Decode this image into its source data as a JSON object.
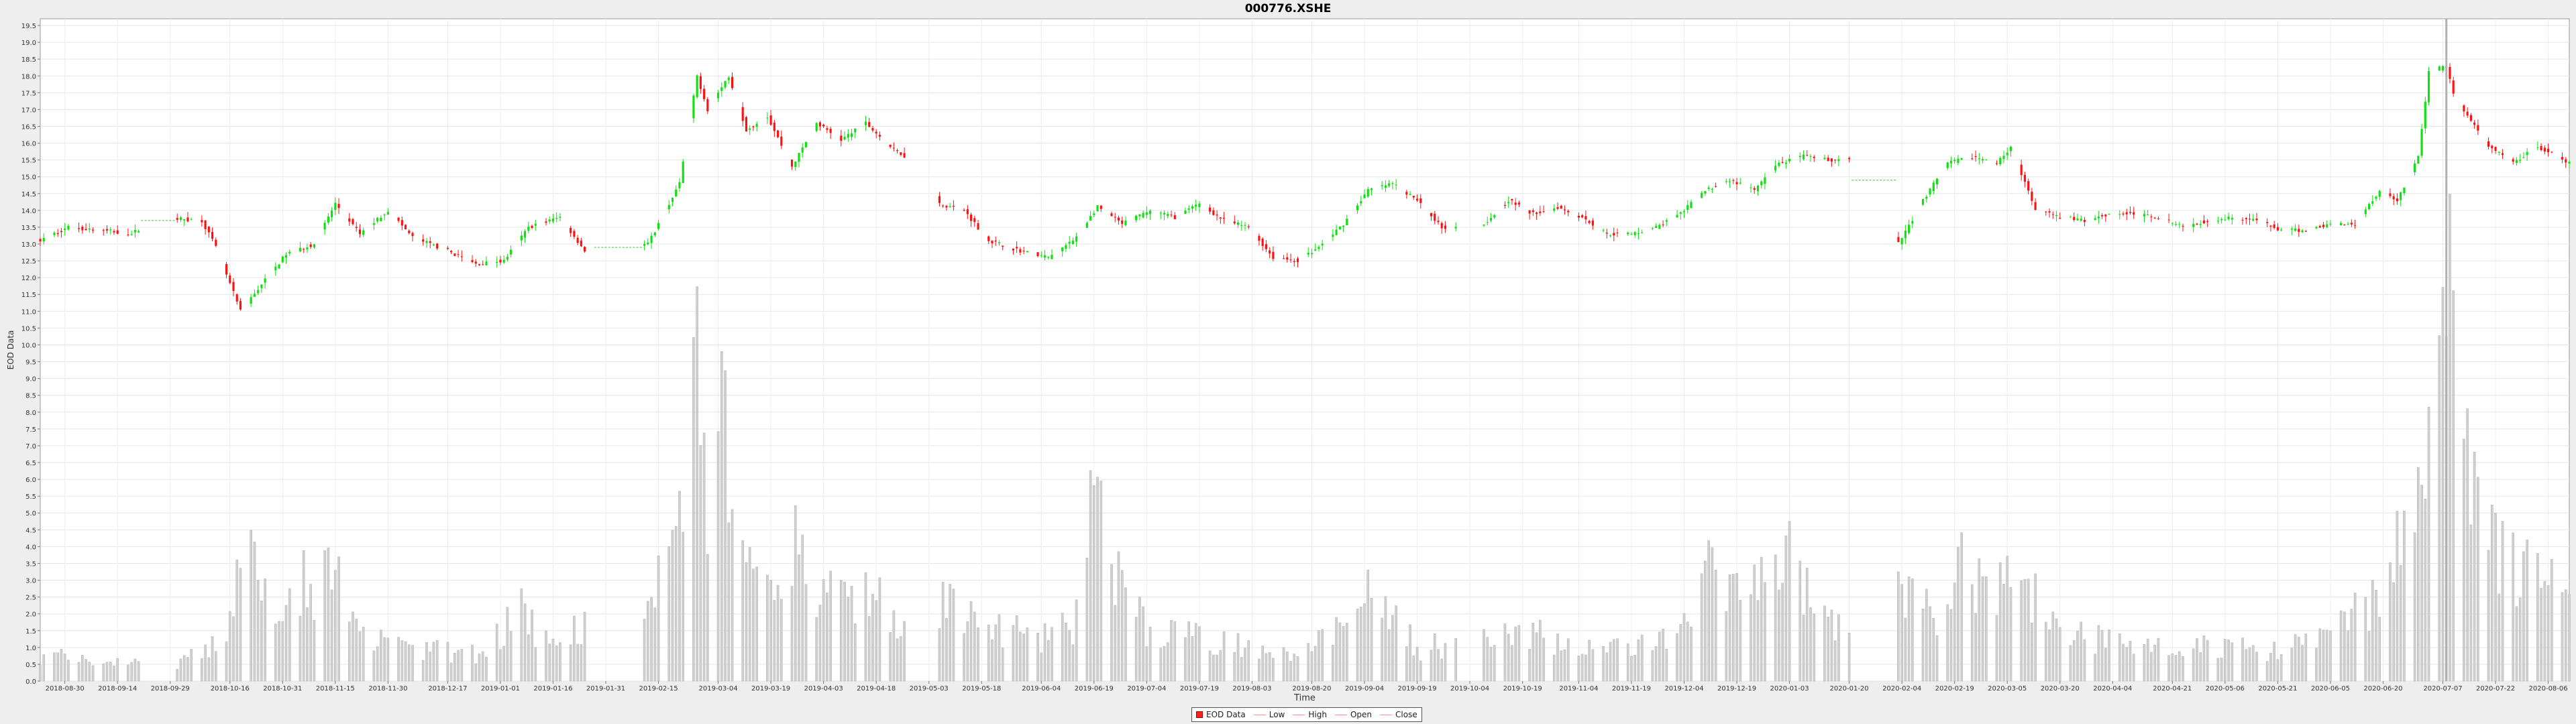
{
  "chart_data": {
    "type": "candlestick",
    "title": "000776.XSHE",
    "xlabel": "Time",
    "ylabel": "EOD Data",
    "ylim": [
      0.0,
      19.7
    ],
    "y_ticks": [
      0.0,
      0.5,
      1.0,
      1.5,
      2.0,
      2.5,
      3.0,
      3.5,
      4.0,
      4.5,
      5.0,
      5.5,
      6.0,
      6.5,
      7.0,
      7.5,
      8.0,
      8.5,
      9.0,
      9.5,
      10.0,
      10.5,
      11.0,
      11.5,
      12.0,
      12.5,
      13.0,
      13.5,
      14.0,
      14.5,
      15.0,
      15.5,
      16.0,
      16.5,
      17.0,
      17.5,
      18.0,
      18.5,
      19.0,
      19.5
    ],
    "x_ticks": [
      "2018-08-30",
      "2018-09-14",
      "2018-09-29",
      "2018-10-16",
      "2018-10-31",
      "2018-11-15",
      "2018-11-30",
      "2018-12-17",
      "2019-01-01",
      "2019-01-16",
      "2019-01-31",
      "2019-02-15",
      "2019-03-04",
      "2019-03-19",
      "2019-04-03",
      "2019-04-18",
      "2019-05-03",
      "2019-05-18",
      "2019-06-04",
      "2019-06-19",
      "2019-07-04",
      "2019-07-19",
      "2019-08-03",
      "2019-08-20",
      "2019-09-04",
      "2019-09-19",
      "2019-10-04",
      "2019-10-19",
      "2019-11-04",
      "2019-11-19",
      "2019-12-04",
      "2019-12-19",
      "2020-01-03",
      "2020-01-20",
      "2020-02-04",
      "2020-02-19",
      "2020-03-05",
      "2020-03-20",
      "2020-04-04",
      "2020-04-21",
      "2020-05-06",
      "2020-05-21",
      "2020-06-05",
      "2020-06-20",
      "2020-07-07",
      "2020-07-22",
      "2020-08-06"
    ],
    "x_range": [
      "2018-08-23",
      "2020-08-12"
    ],
    "crosshair_date": "2020-07-08",
    "legend": [
      "EOD Data",
      "Low",
      "High",
      "Open",
      "Close"
    ],
    "legend_position": "bottom",
    "grid": true,
    "colors": {
      "up": "#10e010",
      "down": "#ff1010",
      "volume": "#c0c0c0"
    },
    "price_anchors": [
      [
        "2018-08-23",
        13.1
      ],
      [
        "2018-08-31",
        13.5
      ],
      [
        "2018-09-10",
        13.4
      ],
      [
        "2018-09-18",
        13.3
      ],
      [
        "2018-09-25",
        13.8
      ],
      [
        "2018-10-08",
        13.7
      ],
      [
        "2018-10-12",
        12.9
      ],
      [
        "2018-10-19",
        11.0
      ],
      [
        "2018-10-25",
        11.8
      ],
      [
        "2018-11-01",
        12.7
      ],
      [
        "2018-11-09",
        13.0
      ],
      [
        "2018-11-15",
        14.2
      ],
      [
        "2018-11-22",
        13.3
      ],
      [
        "2018-11-30",
        14.0
      ],
      [
        "2018-12-07",
        13.2
      ],
      [
        "2018-12-17",
        12.8
      ],
      [
        "2018-12-25",
        12.4
      ],
      [
        "2019-01-02",
        12.5
      ],
      [
        "2019-01-09",
        13.5
      ],
      [
        "2019-01-18",
        13.8
      ],
      [
        "2019-01-25",
        12.8
      ],
      [
        "2019-02-01",
        12.9
      ],
      [
        "2019-02-12",
        13.0
      ],
      [
        "2019-02-21",
        14.8
      ],
      [
        "2019-02-26",
        18.0
      ],
      [
        "2019-03-01",
        17.0
      ],
      [
        "2019-03-07",
        18.0
      ],
      [
        "2019-03-12",
        16.4
      ],
      [
        "2019-03-18",
        16.8
      ],
      [
        "2019-03-25",
        15.3
      ],
      [
        "2019-04-01",
        16.6
      ],
      [
        "2019-04-08",
        16.1
      ],
      [
        "2019-04-15",
        16.6
      ],
      [
        "2019-04-23",
        15.8
      ],
      [
        "2019-04-30",
        15.4
      ],
      [
        "2019-05-06",
        14.2
      ],
      [
        "2019-05-13",
        14.0
      ],
      [
        "2019-05-20",
        13.1
      ],
      [
        "2019-05-29",
        12.8
      ],
      [
        "2019-06-06",
        12.6
      ],
      [
        "2019-06-13",
        13.1
      ],
      [
        "2019-06-20",
        14.1
      ],
      [
        "2019-06-27",
        13.6
      ],
      [
        "2019-07-05",
        14.0
      ],
      [
        "2019-07-12",
        13.8
      ],
      [
        "2019-07-19",
        14.2
      ],
      [
        "2019-07-26",
        13.7
      ],
      [
        "2019-08-02",
        13.5
      ],
      [
        "2019-08-09",
        12.6
      ],
      [
        "2019-08-16",
        12.5
      ],
      [
        "2019-08-22",
        12.9
      ],
      [
        "2019-08-29",
        13.6
      ],
      [
        "2019-09-05",
        14.6
      ],
      [
        "2019-09-12",
        14.8
      ],
      [
        "2019-09-19",
        14.3
      ],
      [
        "2019-09-26",
        13.5
      ],
      [
        "2019-10-08",
        13.6
      ],
      [
        "2019-10-15",
        14.3
      ],
      [
        "2019-10-22",
        13.9
      ],
      [
        "2019-10-29",
        14.1
      ],
      [
        "2019-11-05",
        13.8
      ],
      [
        "2019-11-12",
        13.3
      ],
      [
        "2019-11-19",
        13.3
      ],
      [
        "2019-11-26",
        13.5
      ],
      [
        "2019-12-03",
        13.9
      ],
      [
        "2019-12-10",
        14.6
      ],
      [
        "2019-12-17",
        14.9
      ],
      [
        "2019-12-24",
        14.6
      ],
      [
        "2019-12-31",
        15.4
      ],
      [
        "2020-01-07",
        15.6
      ],
      [
        "2020-01-14",
        15.5
      ],
      [
        "2020-01-20",
        15.5
      ],
      [
        "2020-02-03",
        13.0
      ],
      [
        "2020-02-10",
        14.3
      ],
      [
        "2020-02-17",
        15.4
      ],
      [
        "2020-02-24",
        15.6
      ],
      [
        "2020-03-02",
        15.4
      ],
      [
        "2020-03-06",
        15.9
      ],
      [
        "2020-03-13",
        14.0
      ],
      [
        "2020-03-20",
        13.8
      ],
      [
        "2020-03-27",
        13.7
      ],
      [
        "2020-04-03",
        13.9
      ],
      [
        "2020-04-10",
        13.9
      ],
      [
        "2020-04-17",
        13.8
      ],
      [
        "2020-04-24",
        13.5
      ],
      [
        "2020-05-01",
        13.7
      ],
      [
        "2020-05-08",
        13.8
      ],
      [
        "2020-05-15",
        13.7
      ],
      [
        "2020-05-22",
        13.4
      ],
      [
        "2020-05-29",
        13.4
      ],
      [
        "2020-06-05",
        13.6
      ],
      [
        "2020-06-12",
        13.6
      ],
      [
        "2020-06-19",
        14.6
      ],
      [
        "2020-06-24",
        14.3
      ],
      [
        "2020-06-30",
        15.6
      ],
      [
        "2020-07-03",
        18.1
      ],
      [
        "2020-07-08",
        18.3
      ],
      [
        "2020-07-10",
        17.5
      ],
      [
        "2020-07-14",
        16.8
      ],
      [
        "2020-07-20",
        15.9
      ],
      [
        "2020-07-27",
        15.4
      ],
      [
        "2020-08-03",
        15.9
      ],
      [
        "2020-08-10",
        15.5
      ],
      [
        "2020-08-12",
        15.4
      ]
    ],
    "volume_anchors": [
      [
        "2018-08-23",
        0.8
      ],
      [
        "2018-09-20",
        0.5
      ],
      [
        "2018-10-03",
        0.6
      ],
      [
        "2018-10-15",
        1.3
      ],
      [
        "2018-10-22",
        4.8
      ],
      [
        "2018-10-26",
        2.5
      ],
      [
        "2018-11-01",
        3.0
      ],
      [
        "2018-11-15",
        3.0
      ],
      [
        "2018-11-22",
        1.3
      ],
      [
        "2018-12-07",
        1.0
      ],
      [
        "2018-12-25",
        0.8
      ],
      [
        "2019-01-07",
        2.2
      ],
      [
        "2019-01-14",
        1.2
      ],
      [
        "2019-01-28",
        1.8
      ],
      [
        "2019-02-12",
        2.0
      ],
      [
        "2019-02-21",
        5.0
      ],
      [
        "2019-02-26",
        9.0
      ],
      [
        "2019-03-01",
        4.5
      ],
      [
        "2019-03-06",
        8.5
      ],
      [
        "2019-03-12",
        3.0
      ],
      [
        "2019-03-20",
        2.8
      ],
      [
        "2019-03-26",
        4.3
      ],
      [
        "2019-04-02",
        2.6
      ],
      [
        "2019-04-10",
        2.6
      ],
      [
        "2019-04-16",
        3.0
      ],
      [
        "2019-04-25",
        1.6
      ],
      [
        "2019-05-06",
        2.3
      ],
      [
        "2019-05-20",
        1.7
      ],
      [
        "2019-06-03",
        1.3
      ],
      [
        "2019-06-13",
        1.7
      ],
      [
        "2019-06-19",
        5.5
      ],
      [
        "2019-06-26",
        3.0
      ],
      [
        "2019-07-05",
        1.5
      ],
      [
        "2019-07-19",
        1.3
      ],
      [
        "2019-08-02",
        1.1
      ],
      [
        "2019-08-16",
        0.9
      ],
      [
        "2019-08-29",
        1.6
      ],
      [
        "2019-09-05",
        2.5
      ],
      [
        "2019-09-12",
        1.8
      ],
      [
        "2019-09-20",
        1.0
      ],
      [
        "2019-10-08",
        1.2
      ],
      [
        "2019-10-22",
        1.4
      ],
      [
        "2019-11-05",
        1.1
      ],
      [
        "2019-11-19",
        0.9
      ],
      [
        "2019-12-03",
        1.5
      ],
      [
        "2019-12-10",
        3.6
      ],
      [
        "2019-12-17",
        2.4
      ],
      [
        "2020-01-02",
        4.2
      ],
      [
        "2020-01-10",
        2.0
      ],
      [
        "2020-01-20",
        2.0
      ],
      [
        "2020-02-03",
        2.8
      ],
      [
        "2020-02-14",
        2.0
      ],
      [
        "2020-02-21",
        3.6
      ],
      [
        "2020-03-02",
        3.0
      ],
      [
        "2020-03-10",
        3.2
      ],
      [
        "2020-03-20",
        1.4
      ],
      [
        "2020-04-03",
        1.3
      ],
      [
        "2020-04-17",
        1.1
      ],
      [
        "2020-05-06",
        1.0
      ],
      [
        "2020-05-22",
        0.9
      ],
      [
        "2020-06-05",
        1.4
      ],
      [
        "2020-06-17",
        2.5
      ],
      [
        "2020-06-24",
        3.8
      ],
      [
        "2020-06-30",
        6.0
      ],
      [
        "2020-07-03",
        10.0
      ],
      [
        "2020-07-08",
        12.5
      ],
      [
        "2020-07-10",
        9.0
      ],
      [
        "2020-07-14",
        6.5
      ],
      [
        "2020-07-20",
        4.0
      ],
      [
        "2020-07-27",
        3.5
      ],
      [
        "2020-08-05",
        3.3
      ],
      [
        "2020-08-12",
        2.0
      ]
    ],
    "gaps": [
      [
        "2018-09-21",
        "2018-09-30"
      ],
      [
        "2019-01-28",
        "2019-02-10"
      ],
      [
        "2019-04-29",
        "2019-05-05"
      ],
      [
        "2019-10-01",
        "2019-10-07"
      ],
      [
        "2020-01-21",
        "2020-02-02"
      ]
    ],
    "flat_segments": [
      [
        "2018-09-21",
        "2018-09-30",
        13.7
      ],
      [
        "2019-01-28",
        "2019-02-10",
        12.9
      ],
      [
        "2020-01-21",
        "2020-02-02",
        14.9
      ]
    ]
  }
}
